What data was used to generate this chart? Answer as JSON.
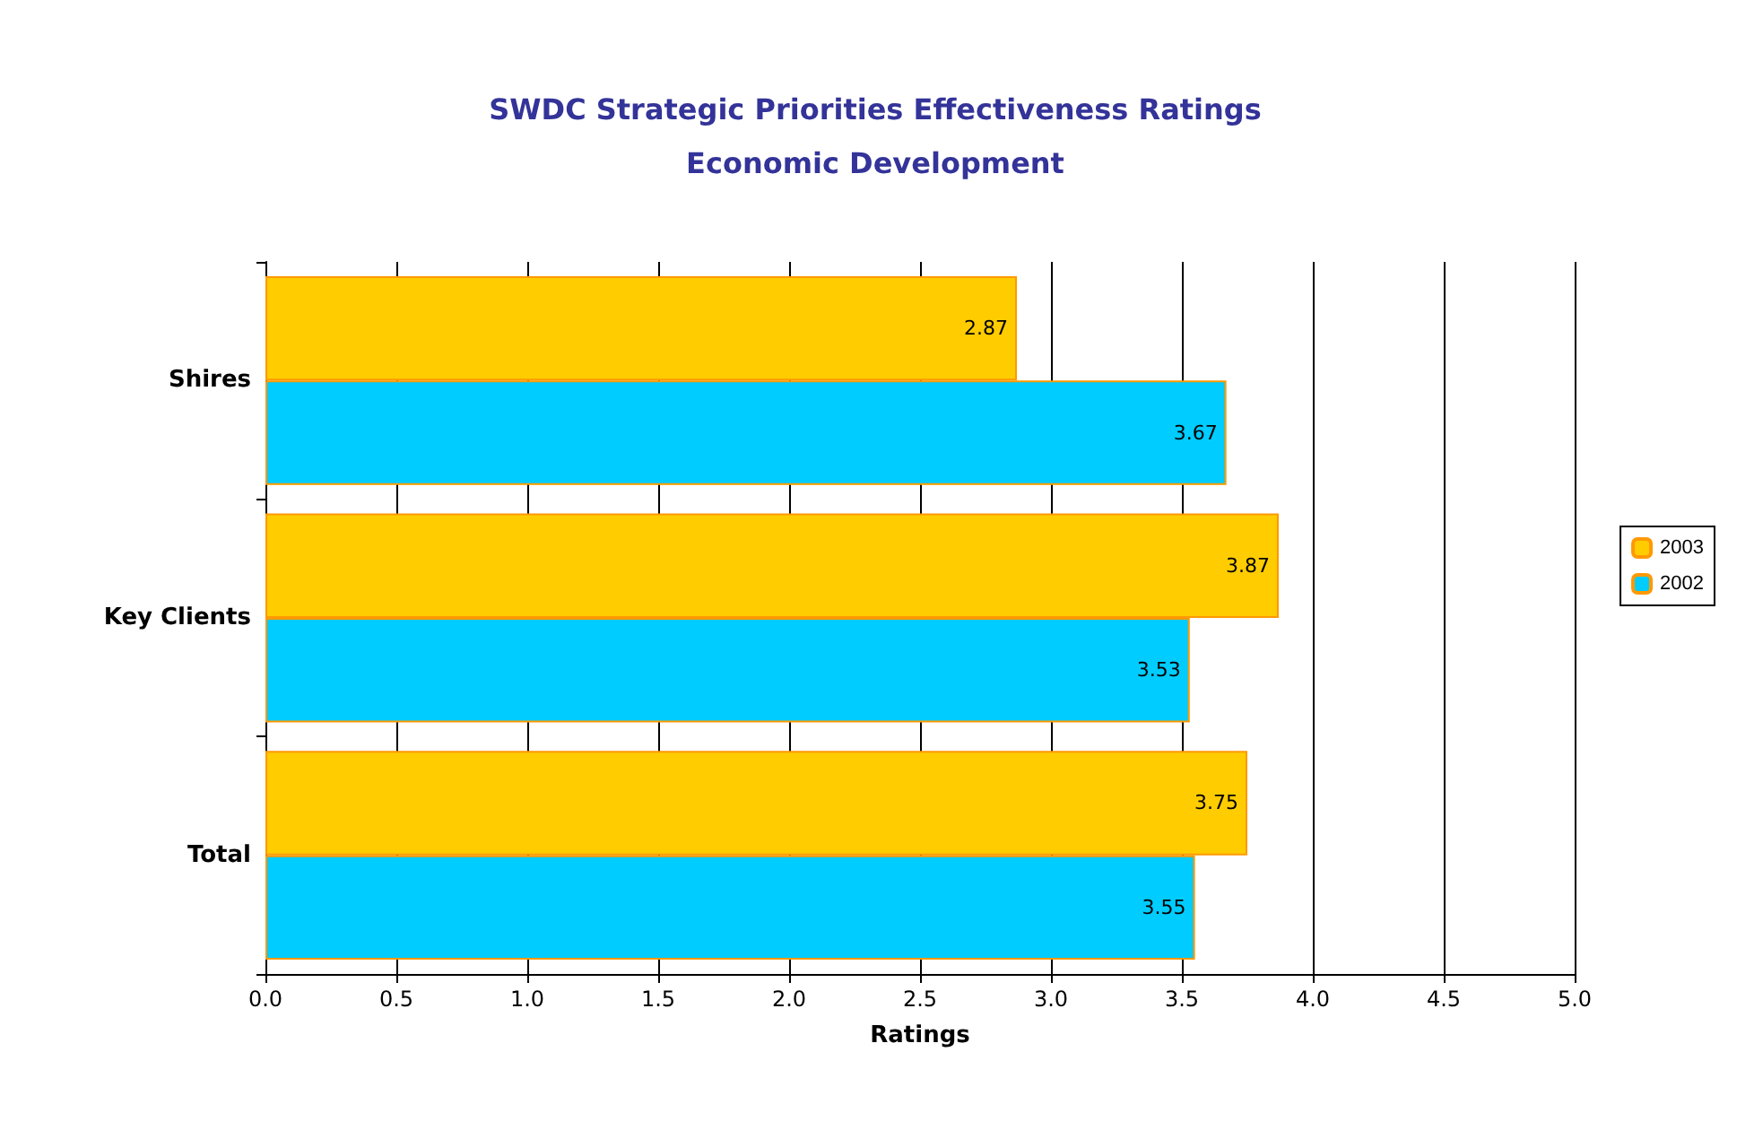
{
  "chart_data": {
    "type": "bar",
    "orientation": "horizontal",
    "title": "SWDC Strategic Priorities Effectiveness Ratings",
    "subtitle": "Economic Development",
    "xlabel": "Ratings",
    "categories": [
      "Shires",
      "Key Clients",
      "Total"
    ],
    "series": [
      {
        "name": "2003",
        "color": "#ffcc00",
        "values": [
          2.87,
          3.87,
          3.75
        ]
      },
      {
        "name": "2002",
        "color": "#00ccff",
        "values": [
          3.67,
          3.53,
          3.55
        ]
      }
    ],
    "xlim": [
      0,
      5
    ],
    "xticks": [
      {
        "value": 0,
        "label": "0.0"
      },
      0.5,
      {
        "value": 1,
        "label": "1.0"
      },
      1.5,
      {
        "value": 2,
        "label": "2.0"
      },
      2.5,
      {
        "value": 3,
        "label": "3.0"
      },
      3.5,
      {
        "value": 4,
        "label": "4.0"
      },
      4.5,
      {
        "value": 5,
        "label": "5.0"
      }
    ],
    "grid": "x",
    "legend": "right",
    "data_labels": true
  }
}
